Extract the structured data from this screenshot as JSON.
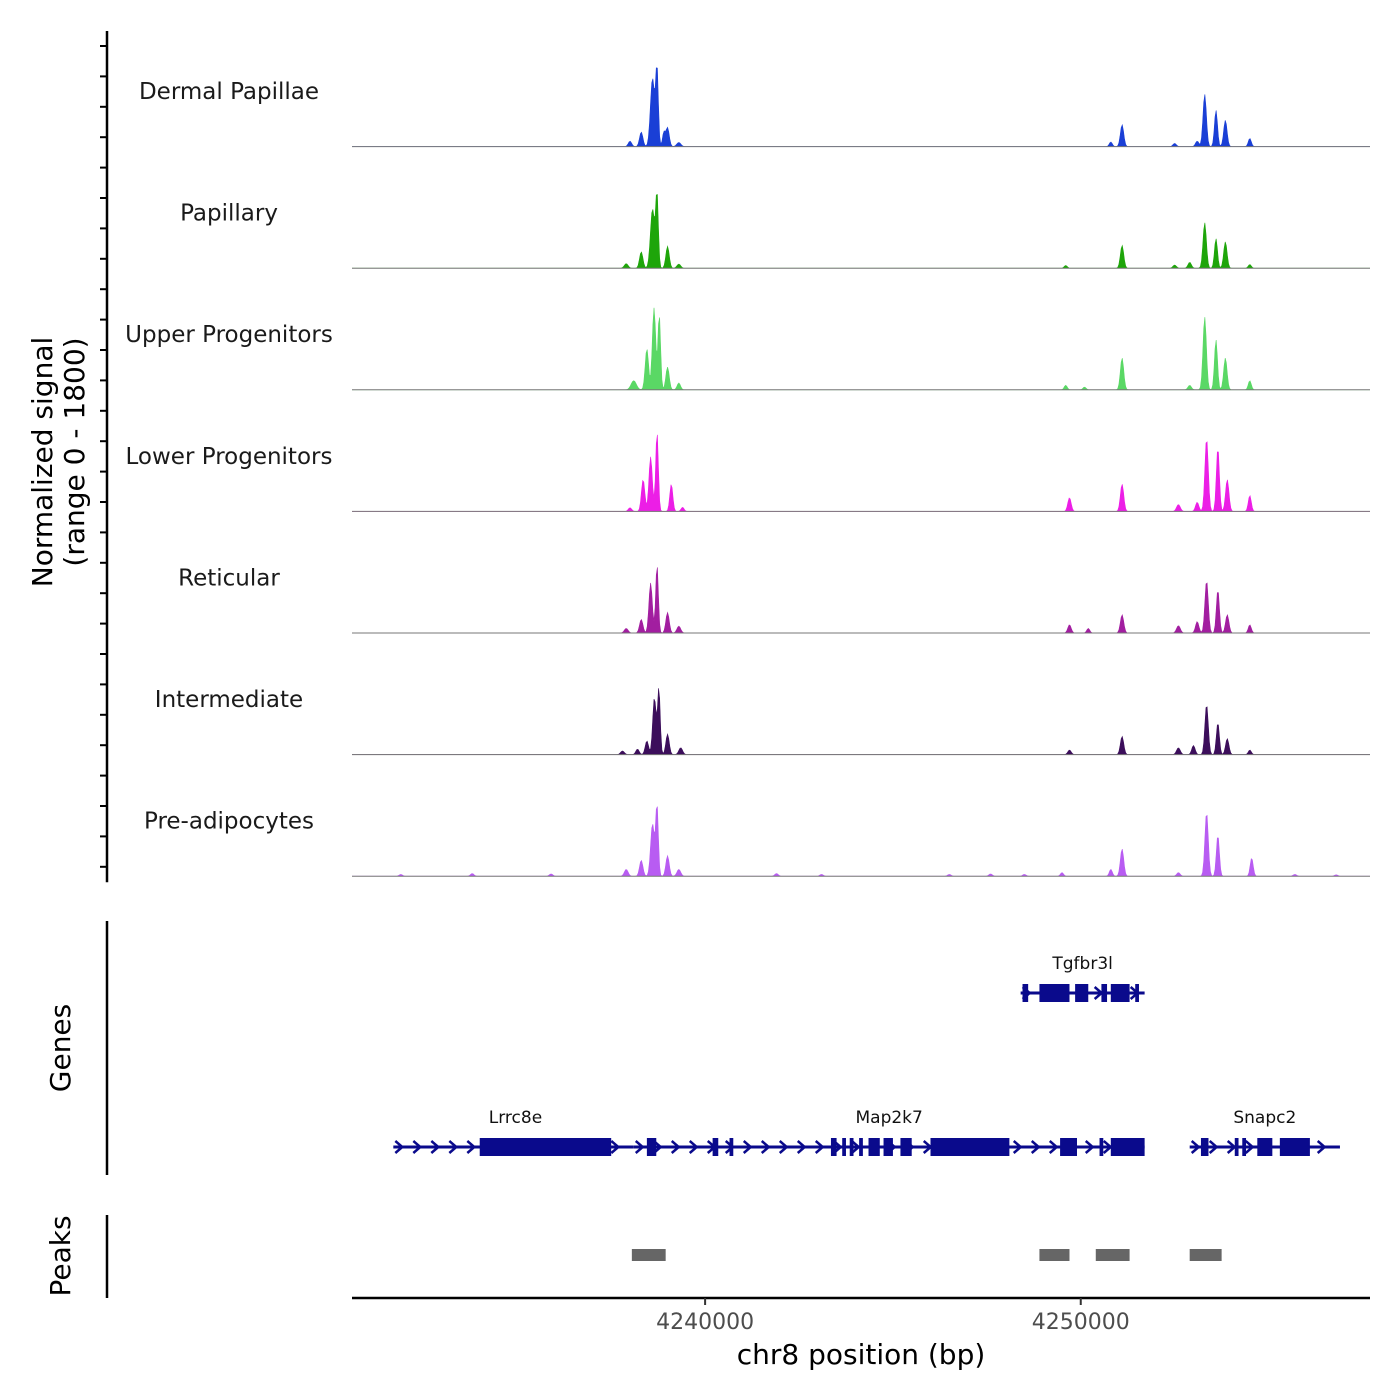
{
  "chart_data": {
    "type": "area",
    "title": "",
    "chromosome": "chr8",
    "xlabel": "chr8 position (bp)",
    "xlim": [
      4230600,
      4257700
    ],
    "x_ticks": [
      4240000,
      4250000
    ],
    "x_tick_labels": [
      "4240000",
      "4250000"
    ],
    "ylabel_line1": "Normalized signal",
    "ylabel_line2": "(range 0 - 1800)",
    "ylim": [
      0,
      1800
    ],
    "grid": false,
    "series": [
      {
        "name": "Dermal Papillae",
        "color": "#1a3fd6",
        "peaks": [
          {
            "pos": 4238000,
            "height": 120,
            "width": 45
          },
          {
            "pos": 4238300,
            "height": 320,
            "width": 45
          },
          {
            "pos": 4238600,
            "height": 1500,
            "width": 55
          },
          {
            "pos": 4238720,
            "height": 1700,
            "width": 35
          },
          {
            "pos": 4238900,
            "height": 300,
            "width": 35
          },
          {
            "pos": 4239000,
            "height": 420,
            "width": 45
          },
          {
            "pos": 4239300,
            "height": 90,
            "width": 55
          },
          {
            "pos": 4250800,
            "height": 100,
            "width": 40
          },
          {
            "pos": 4251100,
            "height": 480,
            "width": 45
          },
          {
            "pos": 4252500,
            "height": 70,
            "width": 45
          },
          {
            "pos": 4253100,
            "height": 120,
            "width": 45
          },
          {
            "pos": 4253300,
            "height": 1150,
            "width": 45
          },
          {
            "pos": 4253600,
            "height": 800,
            "width": 40
          },
          {
            "pos": 4253850,
            "height": 580,
            "width": 45
          },
          {
            "pos": 4254500,
            "height": 180,
            "width": 40
          }
        ]
      },
      {
        "name": "Papillary",
        "color": "#1ea50a",
        "peaks": [
          {
            "pos": 4237900,
            "height": 100,
            "width": 50
          },
          {
            "pos": 4238300,
            "height": 360,
            "width": 45
          },
          {
            "pos": 4238600,
            "height": 1300,
            "width": 55
          },
          {
            "pos": 4238720,
            "height": 1600,
            "width": 35
          },
          {
            "pos": 4239000,
            "height": 480,
            "width": 45
          },
          {
            "pos": 4239300,
            "height": 90,
            "width": 50
          },
          {
            "pos": 4249600,
            "height": 60,
            "width": 40
          },
          {
            "pos": 4251100,
            "height": 500,
            "width": 45
          },
          {
            "pos": 4252500,
            "height": 70,
            "width": 45
          },
          {
            "pos": 4252900,
            "height": 130,
            "width": 45
          },
          {
            "pos": 4253300,
            "height": 1000,
            "width": 45
          },
          {
            "pos": 4253600,
            "height": 650,
            "width": 40
          },
          {
            "pos": 4253850,
            "height": 580,
            "width": 45
          },
          {
            "pos": 4254500,
            "height": 80,
            "width": 40
          }
        ]
      },
      {
        "name": "Upper Progenitors",
        "color": "#5ad865",
        "peaks": [
          {
            "pos": 4238100,
            "height": 200,
            "width": 70
          },
          {
            "pos": 4238450,
            "height": 900,
            "width": 45
          },
          {
            "pos": 4238640,
            "height": 1800,
            "width": 45
          },
          {
            "pos": 4238780,
            "height": 1650,
            "width": 35
          },
          {
            "pos": 4239000,
            "height": 500,
            "width": 45
          },
          {
            "pos": 4239300,
            "height": 150,
            "width": 45
          },
          {
            "pos": 4249600,
            "height": 100,
            "width": 40
          },
          {
            "pos": 4250100,
            "height": 60,
            "width": 40
          },
          {
            "pos": 4251100,
            "height": 700,
            "width": 45
          },
          {
            "pos": 4252900,
            "height": 100,
            "width": 45
          },
          {
            "pos": 4253300,
            "height": 1600,
            "width": 45
          },
          {
            "pos": 4253600,
            "height": 1100,
            "width": 40
          },
          {
            "pos": 4253850,
            "height": 700,
            "width": 45
          },
          {
            "pos": 4254500,
            "height": 200,
            "width": 40
          }
        ]
      },
      {
        "name": "Lower Progenitors",
        "color": "#ec1ee6",
        "peaks": [
          {
            "pos": 4238000,
            "height": 80,
            "width": 45
          },
          {
            "pos": 4238350,
            "height": 700,
            "width": 45
          },
          {
            "pos": 4238550,
            "height": 1200,
            "width": 45
          },
          {
            "pos": 4238720,
            "height": 1750,
            "width": 35
          },
          {
            "pos": 4239100,
            "height": 600,
            "width": 40
          },
          {
            "pos": 4239400,
            "height": 90,
            "width": 40
          },
          {
            "pos": 4249700,
            "height": 300,
            "width": 45
          },
          {
            "pos": 4251100,
            "height": 600,
            "width": 45
          },
          {
            "pos": 4252600,
            "height": 150,
            "width": 50
          },
          {
            "pos": 4253100,
            "height": 200,
            "width": 45
          },
          {
            "pos": 4253350,
            "height": 1600,
            "width": 45
          },
          {
            "pos": 4253650,
            "height": 1400,
            "width": 40
          },
          {
            "pos": 4253900,
            "height": 700,
            "width": 45
          },
          {
            "pos": 4254500,
            "height": 350,
            "width": 40
          }
        ]
      },
      {
        "name": "Reticular",
        "color": "#a21ea0",
        "peaks": [
          {
            "pos": 4237900,
            "height": 100,
            "width": 50
          },
          {
            "pos": 4238300,
            "height": 300,
            "width": 45
          },
          {
            "pos": 4238550,
            "height": 1100,
            "width": 45
          },
          {
            "pos": 4238720,
            "height": 1500,
            "width": 35
          },
          {
            "pos": 4239000,
            "height": 450,
            "width": 45
          },
          {
            "pos": 4239300,
            "height": 150,
            "width": 50
          },
          {
            "pos": 4249700,
            "height": 180,
            "width": 45
          },
          {
            "pos": 4250200,
            "height": 100,
            "width": 40
          },
          {
            "pos": 4251100,
            "height": 400,
            "width": 45
          },
          {
            "pos": 4252600,
            "height": 160,
            "width": 50
          },
          {
            "pos": 4253100,
            "height": 250,
            "width": 45
          },
          {
            "pos": 4253350,
            "height": 1150,
            "width": 45
          },
          {
            "pos": 4253650,
            "height": 950,
            "width": 40
          },
          {
            "pos": 4253900,
            "height": 400,
            "width": 45
          },
          {
            "pos": 4254500,
            "height": 180,
            "width": 40
          }
        ]
      },
      {
        "name": "Intermediate",
        "color": "#3c0e5b",
        "peaks": [
          {
            "pos": 4237800,
            "height": 80,
            "width": 50
          },
          {
            "pos": 4238200,
            "height": 120,
            "width": 45
          },
          {
            "pos": 4238450,
            "height": 300,
            "width": 45
          },
          {
            "pos": 4238650,
            "height": 1250,
            "width": 45
          },
          {
            "pos": 4238770,
            "height": 1450,
            "width": 35
          },
          {
            "pos": 4239000,
            "height": 450,
            "width": 45
          },
          {
            "pos": 4239350,
            "height": 150,
            "width": 50
          },
          {
            "pos": 4249700,
            "height": 100,
            "width": 45
          },
          {
            "pos": 4251100,
            "height": 400,
            "width": 45
          },
          {
            "pos": 4252600,
            "height": 150,
            "width": 50
          },
          {
            "pos": 4253000,
            "height": 200,
            "width": 45
          },
          {
            "pos": 4253350,
            "height": 1100,
            "width": 45
          },
          {
            "pos": 4253650,
            "height": 700,
            "width": 40
          },
          {
            "pos": 4253900,
            "height": 350,
            "width": 45
          },
          {
            "pos": 4254500,
            "height": 100,
            "width": 40
          }
        ]
      },
      {
        "name": "Pre-adipocytes",
        "color": "#b85cf2",
        "peaks": [
          {
            "pos": 4231900,
            "height": 40,
            "width": 45
          },
          {
            "pos": 4233800,
            "height": 60,
            "width": 45
          },
          {
            "pos": 4235900,
            "height": 50,
            "width": 45
          },
          {
            "pos": 4237900,
            "height": 150,
            "width": 50
          },
          {
            "pos": 4238300,
            "height": 350,
            "width": 45
          },
          {
            "pos": 4238600,
            "height": 1150,
            "width": 50
          },
          {
            "pos": 4238720,
            "height": 1550,
            "width": 35
          },
          {
            "pos": 4239000,
            "height": 450,
            "width": 45
          },
          {
            "pos": 4239300,
            "height": 150,
            "width": 50
          },
          {
            "pos": 4241900,
            "height": 60,
            "width": 45
          },
          {
            "pos": 4243100,
            "height": 40,
            "width": 45
          },
          {
            "pos": 4246500,
            "height": 40,
            "width": 45
          },
          {
            "pos": 4247600,
            "height": 50,
            "width": 45
          },
          {
            "pos": 4248500,
            "height": 40,
            "width": 45
          },
          {
            "pos": 4249500,
            "height": 80,
            "width": 40
          },
          {
            "pos": 4250800,
            "height": 150,
            "width": 40
          },
          {
            "pos": 4251100,
            "height": 600,
            "width": 45
          },
          {
            "pos": 4252600,
            "height": 80,
            "width": 45
          },
          {
            "pos": 4253350,
            "height": 1400,
            "width": 45
          },
          {
            "pos": 4253650,
            "height": 900,
            "width": 40
          },
          {
            "pos": 4254550,
            "height": 400,
            "width": 40
          },
          {
            "pos": 4255700,
            "height": 40,
            "width": 45
          },
          {
            "pos": 4256800,
            "height": 30,
            "width": 45
          }
        ]
      }
    ],
    "genes_label": "Genes",
    "gene_color": "#0a0a8c",
    "genes": [
      {
        "name": "Tgfbr3l",
        "row": 1,
        "start": 4248400,
        "end": 4251700,
        "exons": [
          [
            4248450,
            4248600
          ],
          [
            4248900,
            4249700
          ],
          [
            4249850,
            4250200
          ],
          [
            4250550,
            4250700
          ],
          [
            4250800,
            4251300
          ],
          [
            4251450,
            4251550
          ]
        ]
      },
      {
        "name": "Lrrc8e",
        "row": 2,
        "start": 4231700,
        "end": 4238100,
        "exons": [
          [
            4234000,
            4237500
          ]
        ]
      },
      {
        "name": "Map2k7",
        "row": 2,
        "start": 4238100,
        "end": 4251700,
        "exons": [
          [
            4238450,
            4238700
          ],
          [
            4240200,
            4240350
          ],
          [
            4240650,
            4240750
          ],
          [
            4243350,
            4243500
          ],
          [
            4243650,
            4243750
          ],
          [
            4243850,
            4243950
          ],
          [
            4244100,
            4244200
          ],
          [
            4244350,
            4244650
          ],
          [
            4244750,
            4245000
          ],
          [
            4245200,
            4245500
          ],
          [
            4246000,
            4248100
          ],
          [
            4249450,
            4249900
          ],
          [
            4250500,
            4250600
          ],
          [
            4250800,
            4251700
          ]
        ]
      },
      {
        "name": "Snapc2",
        "row": 2,
        "start": 4252900,
        "end": 4256900,
        "exons": [
          [
            4253200,
            4253400
          ],
          [
            4254100,
            4254200
          ],
          [
            4254300,
            4254400
          ],
          [
            4254700,
            4255100
          ],
          [
            4255300,
            4256100
          ]
        ]
      }
    ],
    "peaks_label": "Peaks",
    "peaks_color": "#666666",
    "peak_regions": [
      [
        4238050,
        4238950
      ],
      [
        4248900,
        4249700
      ],
      [
        4250400,
        4251300
      ],
      [
        4252900,
        4253750
      ]
    ]
  }
}
